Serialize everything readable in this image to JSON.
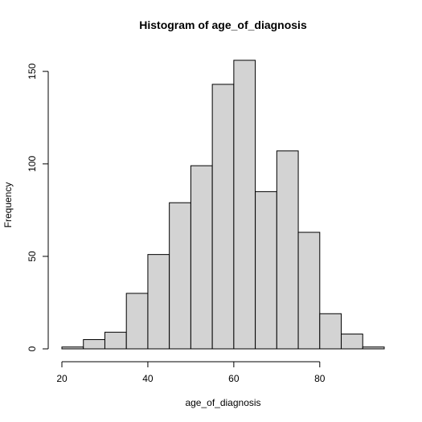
{
  "chart_data": {
    "type": "bar",
    "title": "Histogram of age_of_diagnosis",
    "xlabel": "age_of_diagnosis",
    "ylabel": "Frequency",
    "bins": [
      {
        "start": 20,
        "end": 25,
        "count": 1
      },
      {
        "start": 25,
        "end": 30,
        "count": 5
      },
      {
        "start": 30,
        "end": 35,
        "count": 9
      },
      {
        "start": 35,
        "end": 40,
        "count": 30
      },
      {
        "start": 40,
        "end": 45,
        "count": 51
      },
      {
        "start": 45,
        "end": 50,
        "count": 79
      },
      {
        "start": 50,
        "end": 55,
        "count": 99
      },
      {
        "start": 55,
        "end": 60,
        "count": 143
      },
      {
        "start": 60,
        "end": 65,
        "count": 156
      },
      {
        "start": 65,
        "end": 70,
        "count": 85
      },
      {
        "start": 70,
        "end": 75,
        "count": 107
      },
      {
        "start": 75,
        "end": 80,
        "count": 63
      },
      {
        "start": 80,
        "end": 85,
        "count": 19
      },
      {
        "start": 85,
        "end": 90,
        "count": 8
      },
      {
        "start": 90,
        "end": 95,
        "count": 1
      }
    ],
    "xlim": [
      20,
      95
    ],
    "ylim": [
      0,
      156
    ],
    "xticks": [
      20,
      40,
      60,
      80
    ],
    "yticks": [
      0,
      50,
      100,
      150
    ],
    "colors": {
      "bar_fill": "#d3d3d3",
      "bar_stroke": "#000000",
      "axis": "#000000"
    },
    "grid": false,
    "legend": "none"
  }
}
